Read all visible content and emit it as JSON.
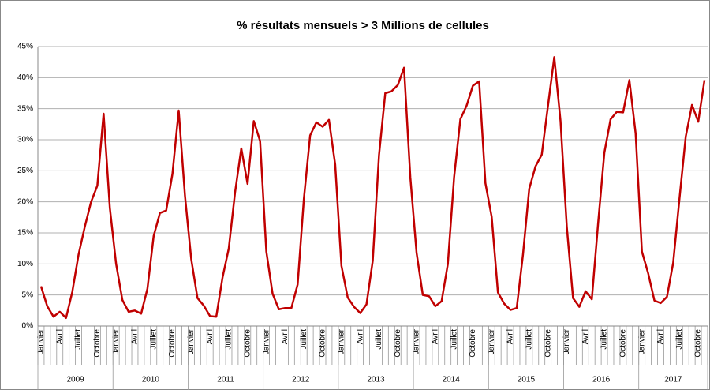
{
  "chart_data": {
    "type": "line",
    "title": "% résultats mensuels > 3 Millions de cellules",
    "categories": [
      "Janvier",
      null,
      null,
      "Avril",
      null,
      null,
      "Juillet",
      null,
      null,
      "Octobre",
      null,
      null,
      "Janvier",
      null,
      null,
      "Avril",
      null,
      null,
      "Juillet",
      null,
      null,
      "Octobre",
      null,
      null,
      "Janvier",
      null,
      null,
      "Avril",
      null,
      null,
      "Juillet",
      null,
      null,
      "Octobre",
      null,
      null,
      "Janvier",
      null,
      null,
      "Avril",
      null,
      null,
      "Juillet",
      null,
      null,
      "Octobre",
      null,
      null,
      "Janvier",
      null,
      null,
      "Avril",
      null,
      null,
      "Juillet",
      null,
      null,
      "Octobre",
      null,
      null,
      "Janvier",
      null,
      null,
      "Avril",
      null,
      null,
      "Juillet",
      null,
      null,
      "Octobre",
      null,
      null,
      "Janvier",
      null,
      null,
      "Avril",
      null,
      null,
      "Juillet",
      null,
      null,
      "Octobre",
      null,
      null,
      "Janvier",
      null,
      null,
      "Avril",
      null,
      null,
      "Juillet",
      null,
      null,
      "Octobre",
      null,
      null,
      "Janvier",
      null,
      null,
      "Avril",
      null,
      null,
      "Juillet",
      null,
      null,
      "Octobre",
      null
    ],
    "x_groups": [
      "2009",
      "2010",
      "2011",
      "2012",
      "2013",
      "2014",
      "2015",
      "2016",
      "2017"
    ],
    "values": [
      6.4,
      3.2,
      1.5,
      2.3,
      1.3,
      5.5,
      11.5,
      16,
      20,
      22.6,
      34.2,
      19,
      10,
      4.2,
      2.3,
      2.5,
      2.0,
      6,
      14.5,
      18.2,
      18.6,
      24.5,
      34.7,
      21,
      10.8,
      4.5,
      3.3,
      1.6,
      1.5,
      7.8,
      12.5,
      21.5,
      28.6,
      22.9,
      33,
      29.8,
      12,
      5.2,
      2.7,
      2.9,
      2.9,
      6.7,
      20.5,
      30.7,
      32.8,
      32.1,
      33.2,
      26,
      9.7,
      4.6,
      3.1,
      2.1,
      3.5,
      10.5,
      27.5,
      37.5,
      37.8,
      38.8,
      41.6,
      24,
      11.8,
      5,
      4.8,
      3.2,
      4,
      10,
      24,
      33.3,
      35.5,
      38.7,
      39.4,
      23,
      17.6,
      5.4,
      3.6,
      2.6,
      2.9,
      11.5,
      22.1,
      25.7,
      27.6,
      35.5,
      43.3,
      33,
      16,
      4.5,
      3.1,
      5.6,
      4.3,
      16.5,
      27.9,
      33.3,
      34.5,
      34.4,
      39.6,
      31,
      12,
      8.5,
      4.1,
      3.7,
      4.7,
      10.2,
      20.5,
      30.5,
      35.6,
      32.9,
      39.6
    ],
    "color": "#c00000",
    "ylim": [
      0,
      45
    ],
    "yticks": [
      {
        "value": 0,
        "label": "0%"
      },
      {
        "value": 5,
        "label": "5%"
      },
      {
        "value": 10,
        "label": "10%"
      },
      {
        "value": 15,
        "label": "15%"
      },
      {
        "value": 20,
        "label": "20%"
      },
      {
        "value": 25,
        "label": "25%"
      },
      {
        "value": 30,
        "label": "30%"
      },
      {
        "value": 35,
        "label": "35%"
      },
      {
        "value": 40,
        "label": "40%"
      },
      {
        "value": 45,
        "label": "45%"
      }
    ],
    "grid": true
  }
}
